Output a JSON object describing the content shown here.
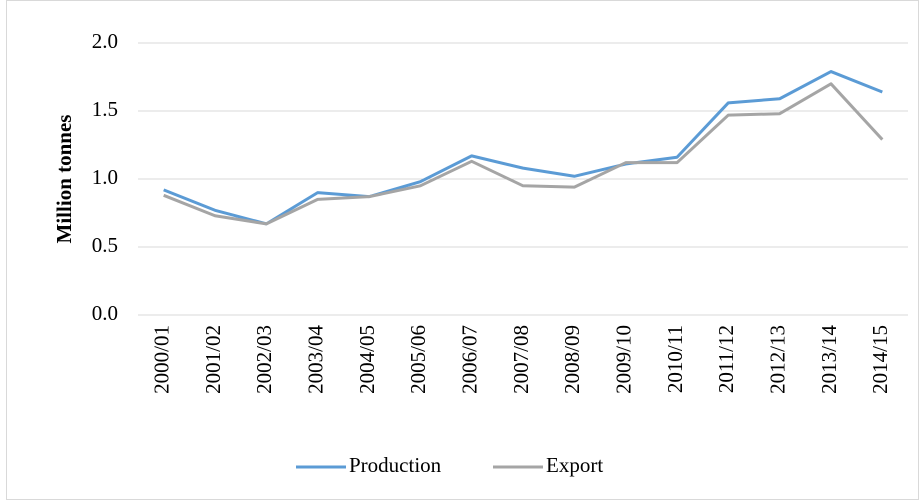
{
  "chart_data": {
    "type": "line",
    "ylabel": "Million tonnes",
    "categories": [
      "2000/01",
      "2001/02",
      "2002/03",
      "2003/04",
      "2004/05",
      "2005/06",
      "2006/07",
      "2007/08",
      "2008/09",
      "2009/10",
      "2010/11",
      "2011/12",
      "2012/13",
      "2013/14",
      "2014/15"
    ],
    "series": [
      {
        "name": "Production",
        "color": "#5b9bd5",
        "values": [
          0.92,
          0.77,
          0.67,
          0.9,
          0.87,
          0.98,
          1.17,
          1.08,
          1.02,
          1.11,
          1.16,
          1.56,
          1.59,
          1.79,
          1.64
        ]
      },
      {
        "name": "Export",
        "color": "#a5a5a5",
        "values": [
          0.88,
          0.73,
          0.67,
          0.85,
          0.87,
          0.95,
          1.13,
          0.95,
          0.94,
          1.12,
          1.12,
          1.47,
          1.48,
          1.7,
          1.29
        ]
      }
    ],
    "ylim": [
      0,
      2
    ],
    "yticks": [
      {
        "value": 0,
        "label": "0.0"
      },
      {
        "value": 0.5,
        "label": "0.5"
      },
      {
        "value": 1,
        "label": "1.0"
      },
      {
        "value": 1.5,
        "label": "1.5"
      },
      {
        "value": 2,
        "label": "2.0"
      }
    ],
    "grid": true,
    "legend": "bottom"
  }
}
